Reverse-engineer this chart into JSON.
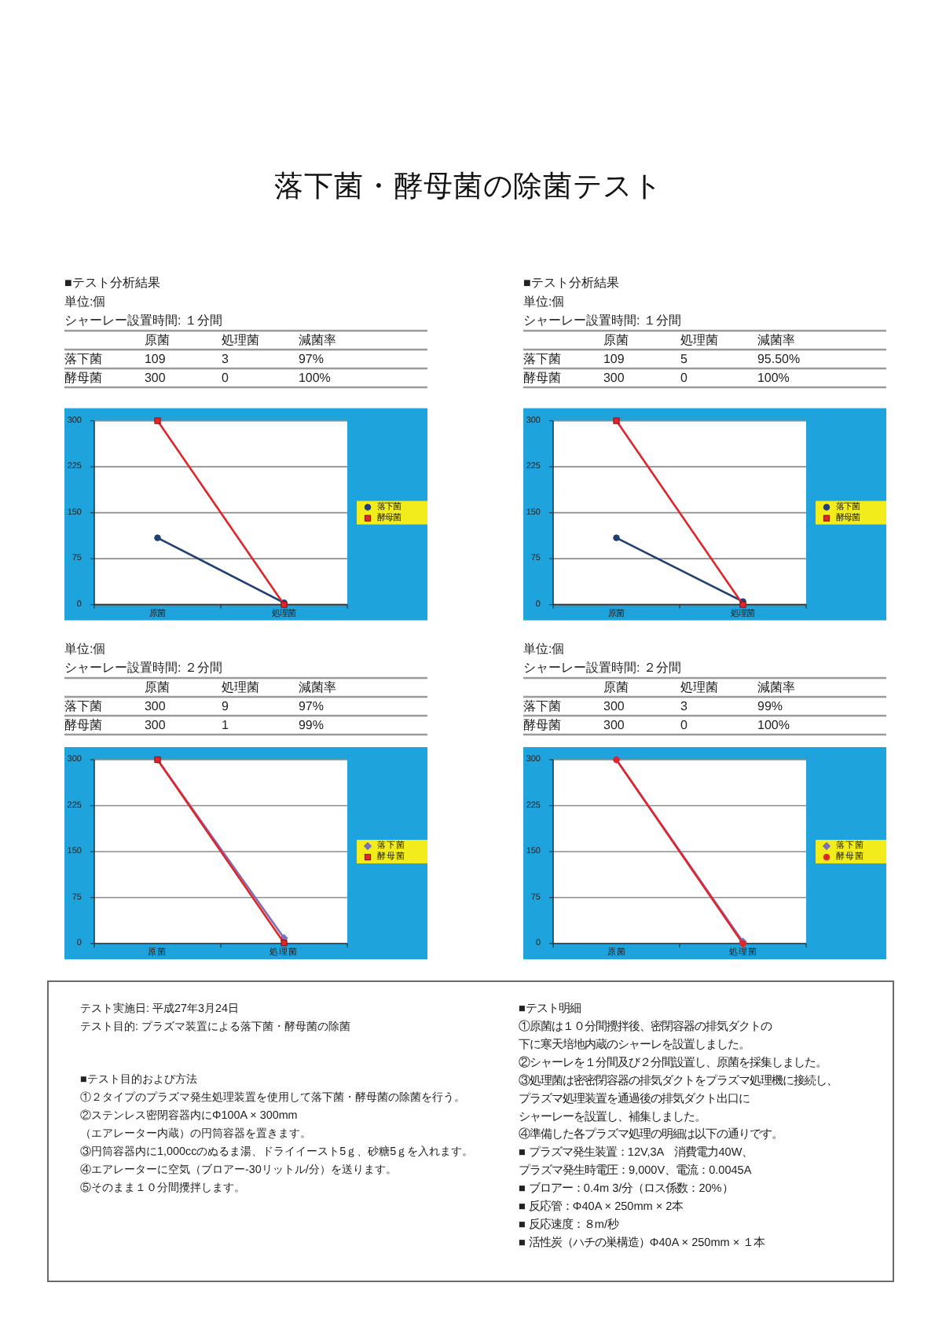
{
  "chart_data": [
    {
      "type": "other",
      "title": "落下菌・酵母菌の除菌テスト"
    },
    {
      "type": "line",
      "title": "■テスト分析結果",
      "annotations": [
        "単位:個",
        "シャーレー設置時間: １分間",
        "減菌率",
        "97%",
        "100%"
      ],
      "categories": [
        "原菌",
        "処理菌"
      ],
      "series": [
        {
          "name": "落下菌",
          "color": "#1f3f75",
          "marker": "circle",
          "values": [
            109,
            3
          ]
        },
        {
          "name": "酵母菌",
          "color": "#e0262b",
          "marker": "square",
          "values": [
            300,
            0
          ]
        }
      ],
      "ylim": [
        0,
        300
      ],
      "yticks": [
        0,
        75,
        150,
        225,
        300
      ],
      "grid": "y",
      "legend": "right",
      "data_labels": true
    },
    {
      "type": "line",
      "title": "■テスト分析結果",
      "annotations": [
        "単位:個",
        "シャーレー設置時間: １分間",
        "減菌率",
        "95.50%",
        "100%"
      ],
      "categories": [
        "原菌",
        "処理菌"
      ],
      "series": [
        {
          "name": "落下菌",
          "color": "#1f3f75",
          "marker": "circle",
          "values": [
            109,
            5
          ]
        },
        {
          "name": "酵母菌",
          "color": "#e0262b",
          "marker": "square",
          "values": [
            300,
            0
          ]
        }
      ],
      "ylim": [
        0,
        300
      ],
      "yticks": [
        0,
        75,
        150,
        225,
        300
      ],
      "grid": "y",
      "legend": "right",
      "data_labels": true
    },
    {
      "type": "line",
      "annotations": [
        "単位:個",
        "シャーレー設置時間: ２分間",
        "減菌率",
        "97%",
        "99%"
      ],
      "categories": [
        "原菌",
        "処理菌"
      ],
      "series": [
        {
          "name": "落下菌",
          "color": "#7a70b4",
          "marker": "diamond",
          "values": [
            300,
            9
          ]
        },
        {
          "name": "酵母菌",
          "color": "#e0262b",
          "marker": "square",
          "values": [
            300,
            1
          ]
        }
      ],
      "ylim": [
        0,
        300
      ],
      "yticks": [
        0,
        75,
        150,
        225,
        300
      ],
      "grid": "y",
      "legend": "right",
      "data_labels": true
    },
    {
      "type": "line",
      "annotations": [
        "単位:個",
        "シャーレー設置時間: ２分間",
        "減菌率",
        "99%",
        "100%"
      ],
      "categories": [
        "原菌",
        "処理菌"
      ],
      "series": [
        {
          "name": "落下菌",
          "color": "#7a70b4",
          "marker": "diamond",
          "values": [
            300,
            3
          ]
        },
        {
          "name": "酵母菌",
          "color": "#e0262b",
          "marker": "circle",
          "values": [
            300,
            0
          ]
        }
      ],
      "ylim": [
        0,
        300
      ],
      "yticks": [
        0,
        75,
        150,
        225,
        300
      ],
      "grid": "y",
      "legend": "right",
      "data_labels": true
    },
    {
      "type": "other",
      "annotations": [
        "テスト実施日: 平成27年3月24日",
        "テスト目的: プラズマ装置による落下菌・酵母菌の除菌"
      ]
    },
    {
      "type": "other",
      "title": "■テスト目的および方法",
      "annotations": [
        "①２タイプのプラズマ発生処理装置を使用して落下菌・酵母菌の除菌を行う。",
        "②ステンレス密閉容器内にΦ100A × 300mm",
        "（エアレーター内蔵）の円筒容器を置きます。",
        "③円筒容器内に1,000ccのぬるま湯、ドライイースト5ｇ、砂糖5ｇを入れます。",
        "④エアレーターに空気（ブロアー-30リットル/分）を送ります。",
        "⑤そのまま１０分間攪拌します。"
      ]
    },
    {
      "type": "other",
      "title": "■テスト明細",
      "annotations": [
        "①原菌は１０分間攪拌後、密閉容器の排気ダクトの",
        "下に寒天培地内蔵のシャーレを設置しました。",
        "②シャーレを１分間及び２分間設置し、原菌を採集しました。",
        "③処理菌は密密閉容器の排気ダクトをプラズマ処理機に接続し、",
        "プラズマ処理装置を通過後の排気ダクト出口に",
        "シャーレーを設置し、補集しました。",
        "④準備した各プラズマ処理の明細は以下の通りです。",
        "■ プラズマ発生装置：12V,3A　消費電力40W、",
        "プラズマ発生時電圧：9,000V、電流：0.0045A",
        "■ ブロアー：0.4m 3/分（ロス係数：20%）",
        "■ 反応管：Φ40A × 250mm × 2本",
        "■ 反応速度：８m/秒",
        "■ 活性炭（ハチの巣構造）Φ40A × 250mm × １本"
      ]
    }
  ]
}
